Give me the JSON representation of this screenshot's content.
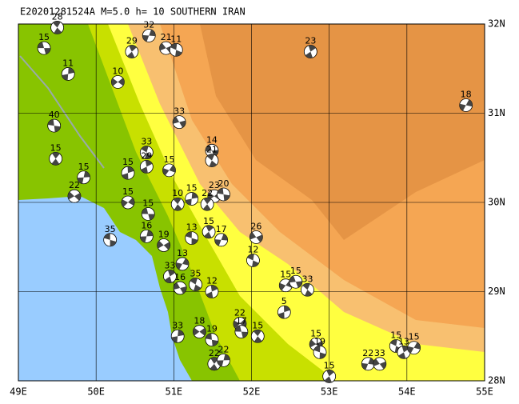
{
  "chart_data": {
    "type": "map",
    "title": "E20201281524A M=5.0 h= 10 SOUTHERN IRAN",
    "xlim": [
      49,
      55
    ],
    "ylim": [
      28,
      32
    ],
    "xticks": [
      {
        "value": 49,
        "label": "49E"
      },
      {
        "value": 50,
        "label": "50E"
      },
      {
        "value": 51,
        "label": "51E"
      },
      {
        "value": 52,
        "label": "52E"
      },
      {
        "value": 53,
        "label": "53E"
      },
      {
        "value": 54,
        "label": "54E"
      },
      {
        "value": 55,
        "label": "55E"
      }
    ],
    "yticks": [
      {
        "value": 28,
        "label": "28N"
      },
      {
        "value": 29,
        "label": "29N"
      },
      {
        "value": 30,
        "label": "30N"
      },
      {
        "value": 31,
        "label": "31N"
      },
      {
        "value": 32,
        "label": "32N"
      }
    ],
    "grid": true,
    "events": {
      "lon": [
        49.33,
        49.5,
        49.64,
        50.28,
        49.46,
        49.48,
        49.84,
        49.72,
        50.18,
        50.46,
        50.68,
        50.9,
        51.03,
        52.76,
        54.76,
        51.07,
        50.65,
        50.65,
        50.94,
        51.49,
        51.49,
        50.41,
        50.41,
        50.67,
        51.05,
        51.23,
        51.52,
        51.64,
        51.43,
        50.65,
        50.87,
        51.23,
        51.45,
        51.61,
        52.06,
        52.02,
        50.95,
        51.11,
        51.08,
        51.28,
        51.49,
        52.44,
        52.57,
        52.72,
        52.42,
        51.85,
        51.87,
        52.08,
        51.05,
        51.33,
        51.49,
        51.52,
        51.64,
        52.83,
        52.88,
        53.0,
        53.5,
        53.65,
        53.86,
        53.96,
        54.09
      ],
      "lat": [
        31.73,
        31.96,
        31.44,
        31.35,
        30.86,
        30.49,
        30.28,
        30.07,
        29.58,
        31.69,
        31.87,
        31.73,
        31.71,
        31.69,
        31.09,
        30.9,
        30.56,
        30.4,
        30.36,
        30.58,
        30.47,
        30.33,
        30.0,
        29.87,
        29.98,
        30.04,
        30.07,
        30.09,
        29.98,
        29.62,
        29.52,
        29.6,
        29.67,
        29.58,
        29.61,
        29.35,
        29.17,
        29.31,
        29.04,
        29.08,
        29.0,
        29.07,
        29.11,
        29.02,
        28.77,
        28.64,
        28.55,
        28.5,
        28.5,
        28.55,
        28.46,
        28.19,
        28.23,
        28.41,
        28.32,
        28.05,
        28.19,
        28.19,
        28.39,
        28.32,
        28.37
      ],
      "depth": [
        15,
        28,
        11,
        10,
        40,
        15,
        15,
        22,
        35,
        29,
        32,
        21,
        11,
        23,
        18,
        33,
        33,
        29,
        15,
        14,
        21,
        15,
        15,
        15,
        10,
        15,
        23,
        20,
        22,
        16,
        19,
        13,
        15,
        17,
        26,
        12,
        33,
        13,
        16,
        35,
        12,
        15,
        15,
        33,
        5,
        22,
        17,
        15,
        33,
        18,
        19,
        22,
        22,
        15,
        19,
        15,
        22,
        33,
        15,
        13,
        15
      ]
    }
  }
}
